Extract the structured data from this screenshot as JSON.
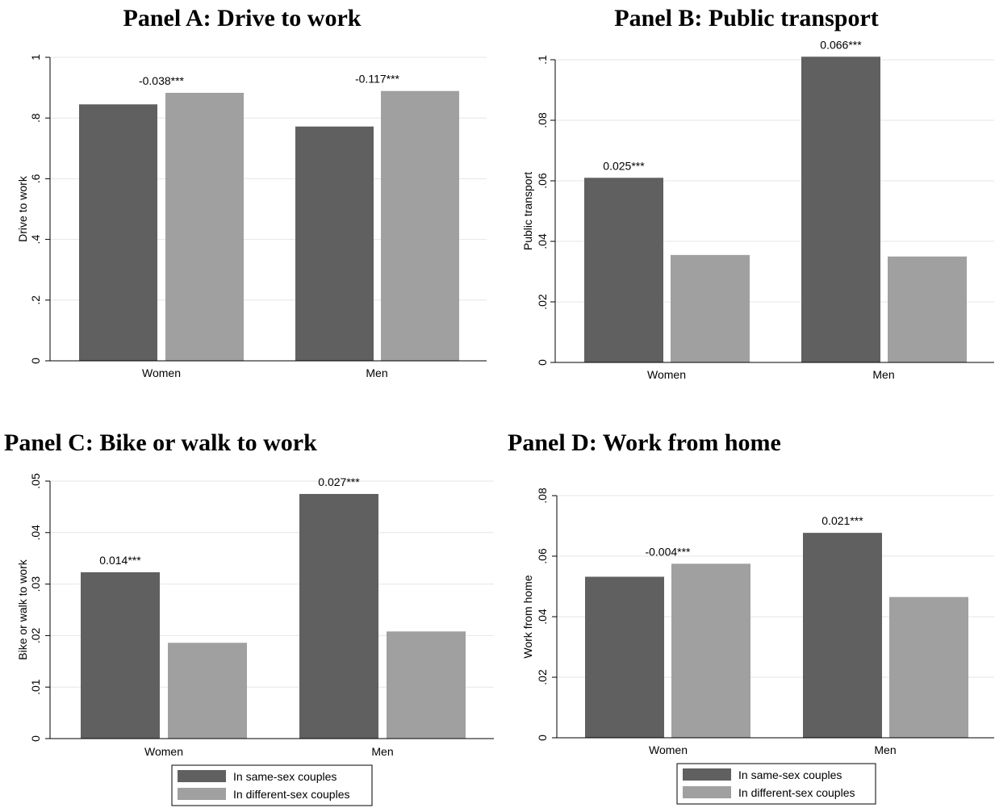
{
  "colors": {
    "same_sex": "#606060",
    "different_sex": "#a0a0a0",
    "grid": "#e6e6e6",
    "axis": "#000000"
  },
  "legend": {
    "items": [
      "In same-sex couples",
      "In different-sex couples"
    ]
  },
  "chart_data": [
    {
      "type": "bar",
      "title": "Panel A: Drive to work",
      "ylabel": "Drive to work",
      "xlabel": "",
      "categories": [
        "Women",
        "Men"
      ],
      "series": [
        {
          "name": "In same-sex couples",
          "values": [
            0.845,
            0.772
          ]
        },
        {
          "name": "In different-sex couples",
          "values": [
            0.883,
            0.889
          ]
        }
      ],
      "annotations": [
        "-0.038***",
        "-0.117***"
      ],
      "ylim": [
        0,
        1
      ],
      "yticks": [
        0,
        0.2,
        0.4,
        0.6,
        0.8,
        1
      ],
      "ytick_labels": [
        "0",
        ".2",
        ".4",
        ".6",
        ".8",
        "1"
      ],
      "grid": true,
      "legend": false
    },
    {
      "type": "bar",
      "title": "Panel B: Public transport",
      "ylabel": "Public transport",
      "xlabel": "",
      "categories": [
        "Women",
        "Men"
      ],
      "series": [
        {
          "name": "In same-sex couples",
          "values": [
            0.061,
            0.101
          ]
        },
        {
          "name": "In different-sex couples",
          "values": [
            0.0355,
            0.035
          ]
        }
      ],
      "annotations": [
        "0.025***",
        "0.066***"
      ],
      "ylim": [
        0,
        0.1
      ],
      "yticks": [
        0,
        0.02,
        0.04,
        0.06,
        0.08,
        0.1
      ],
      "ytick_labels": [
        "0",
        ".02",
        ".04",
        ".06",
        ".08",
        ".1"
      ],
      "grid": true,
      "legend": false
    },
    {
      "type": "bar",
      "title": "Panel C: Bike or walk to work",
      "ylabel": "Bike or walk to work",
      "xlabel": "",
      "categories": [
        "Women",
        "Men"
      ],
      "series": [
        {
          "name": "In same-sex couples",
          "values": [
            0.0323,
            0.0475
          ]
        },
        {
          "name": "In different-sex couples",
          "values": [
            0.0186,
            0.0208
          ]
        }
      ],
      "annotations": [
        "0.014***",
        "0.027***"
      ],
      "ylim": [
        0,
        0.05
      ],
      "yticks": [
        0,
        0.01,
        0.02,
        0.03,
        0.04,
        0.05
      ],
      "ytick_labels": [
        "0",
        ".01",
        ".02",
        ".03",
        ".04",
        ".05"
      ],
      "grid": true,
      "legend": "bottom"
    },
    {
      "type": "bar",
      "title": "Panel D: Work from home",
      "ylabel": "Work from home",
      "xlabel": "",
      "categories": [
        "Women",
        "Men"
      ],
      "series": [
        {
          "name": "In same-sex couples",
          "values": [
            0.0532,
            0.0677
          ]
        },
        {
          "name": "In different-sex couples",
          "values": [
            0.0575,
            0.0465
          ]
        }
      ],
      "annotations": [
        "-0.004***",
        "0.021***"
      ],
      "ylim": [
        0,
        0.08
      ],
      "yticks": [
        0,
        0.02,
        0.04,
        0.06,
        0.08
      ],
      "ytick_labels": [
        "0",
        ".02",
        ".04",
        ".06",
        ".08"
      ],
      "grid": true,
      "legend": "bottom"
    }
  ]
}
